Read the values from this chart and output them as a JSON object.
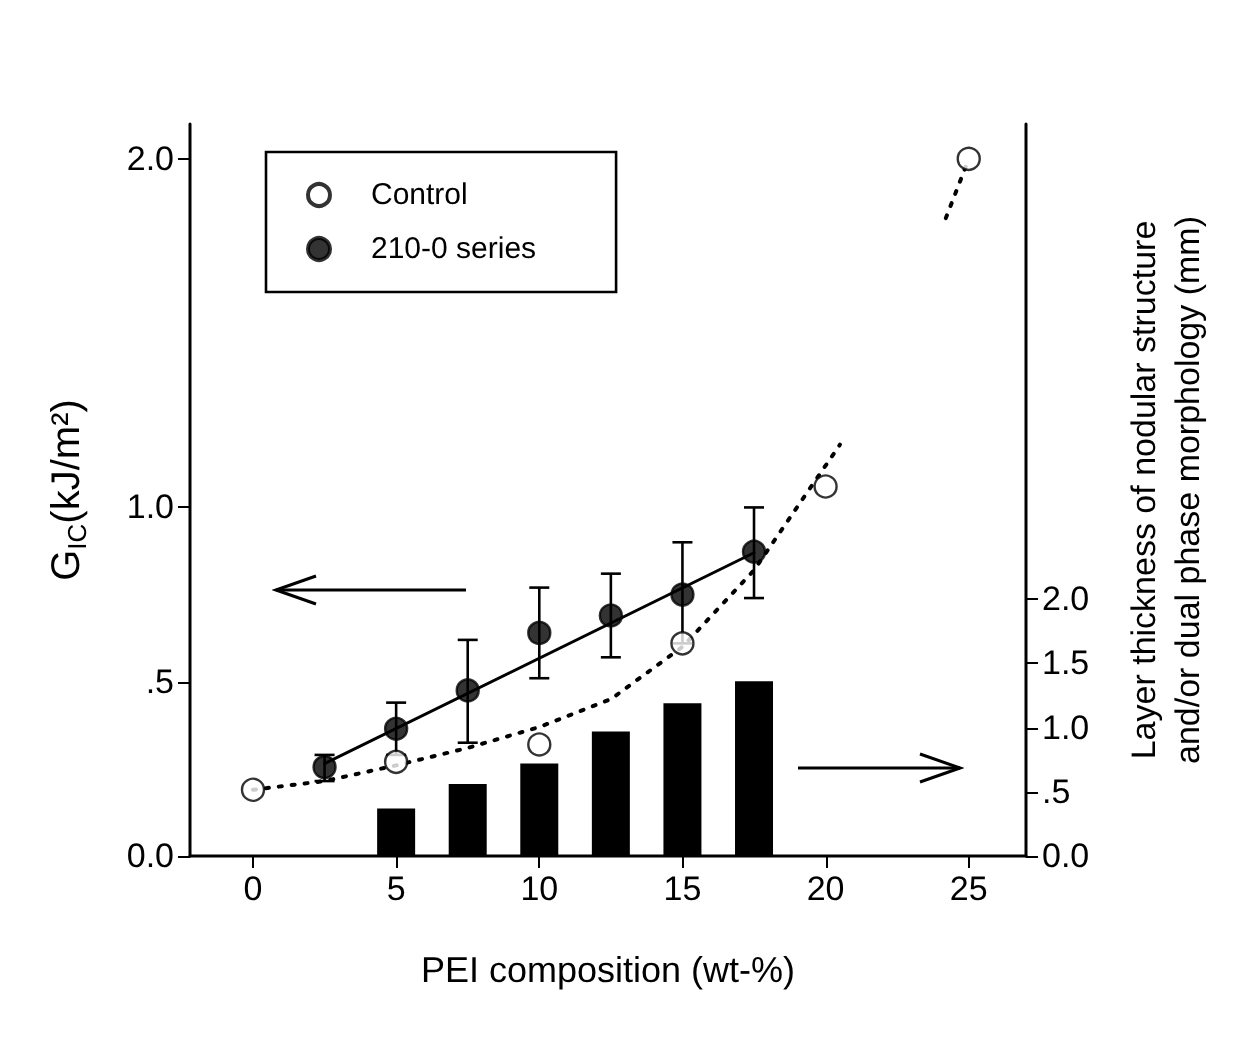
{
  "chart_data": {
    "type": "scatter",
    "xlabel": "PEI composition (wt-%)",
    "ylabel": "G$_{IC}$(kJ/m²)",
    "y2label": "Layer thickness of nodular structure\nand/or dual phase morphology (mm)",
    "xlim": [
      -2.2,
      27
    ],
    "xticks": [
      0,
      5,
      10,
      15,
      20,
      25
    ],
    "ylim": [
      0,
      2.1
    ],
    "yticks": [
      {
        "value": 0,
        "label": "0.0"
      },
      {
        "value": 0.5,
        "label": ".5"
      },
      {
        "value": 1,
        "label": "1.0"
      },
      {
        "value": 2,
        "label": "2.0"
      }
    ],
    "y2lim": [
      0,
      5.7
    ],
    "y2ticks": [
      {
        "value": 0,
        "label": "0.0"
      },
      {
        "value": 0.5,
        "label": ".5"
      },
      {
        "value": 1,
        "label": "1.0"
      },
      {
        "value": 1.5,
        "label": "1.5"
      },
      {
        "value": 2,
        "label": "2.0"
      }
    ],
    "legend": "top left",
    "marker": "circle",
    "series": [
      {
        "name": "Control",
        "color": "#ffffff",
        "x": [
          0,
          5,
          10,
          15,
          20,
          25
        ],
        "values": [
          0.19,
          0.27,
          0.32,
          0.61,
          1.06,
          2.0
        ]
      },
      {
        "name": "210-0 series",
        "color": "#000000",
        "x": [
          2.5,
          5,
          7.5,
          10,
          12.5,
          15,
          17.5
        ],
        "values": [
          0.255,
          0.365,
          0.475,
          0.64,
          0.69,
          0.75,
          0.873
        ],
        "errors": [
          [
            0.215,
            0.29
          ],
          [
            0.29,
            0.44
          ],
          [
            0.325,
            0.62
          ],
          [
            0.51,
            0.77
          ],
          [
            0.57,
            0.81
          ],
          [
            0.61,
            0.9
          ],
          [
            0.74,
            1.0
          ]
        ]
      },
      {
        "type": "line",
        "color": "#000000",
        "line_style": "solid",
        "marker": "none",
        "x": [
          2.5,
          17.5
        ],
        "values": [
          0.265,
          0.87
        ]
      },
      {
        "type": "line",
        "color": "#000000",
        "line_style": "dotted",
        "marker": "none",
        "x": [
          0,
          2.5,
          5,
          7.5,
          10,
          12.5,
          15,
          17.5,
          19,
          20.5,
          22,
          24.2,
          25
        ],
        "values": [
          0.19,
          0.215,
          0.26,
          0.31,
          0.37,
          0.45,
          0.6,
          0.82,
          1.0,
          1.18,
          null,
          1.83,
          2.0
        ]
      },
      {
        "type": "bar",
        "axis": "y2",
        "color": "#000000",
        "x": [
          5,
          7.5,
          10,
          12.5,
          15,
          17.5
        ],
        "values": [
          0.37,
          0.56,
          0.72,
          0.97,
          1.19,
          1.36
        ]
      }
    ]
  }
}
